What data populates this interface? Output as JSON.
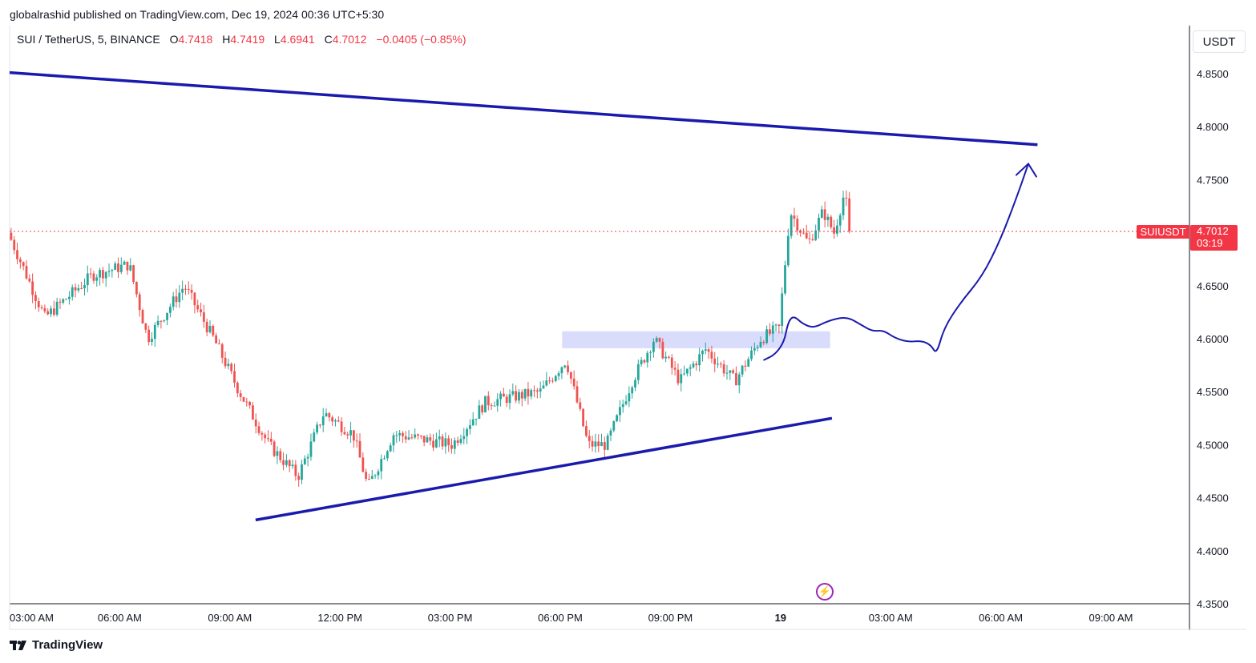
{
  "header": {
    "publisher_line": "globalrashid published on TradingView.com, Dec 19, 2024 00:36 UTC+5:30"
  },
  "legend": {
    "symbol": "SUI / TetherUS, 5, BINANCE",
    "open_label": "O",
    "open": "4.7418",
    "high_label": "H",
    "high": "4.7419",
    "low_label": "L",
    "low": "4.6941",
    "close_label": "C",
    "close": "4.7012",
    "change": "−0.0405 (−0.85%)"
  },
  "currency": "USDT",
  "price_badge": {
    "symbol": "SUIUSDT",
    "price": "4.7012",
    "countdown": "03:19"
  },
  "footer": {
    "brand": "TradingView"
  },
  "colors": {
    "up": "#26a69a",
    "down": "#ef5350",
    "trendline": "#1a1aad",
    "zone": "#d9dcfb",
    "last_price": "#f23645"
  },
  "chart_data": {
    "type": "candlestick",
    "y_ticks": [
      "4.8500",
      "4.8000",
      "4.7500",
      "4.7000",
      "4.6500",
      "4.6000",
      "4.5500",
      "4.5000",
      "4.4500",
      "4.4000",
      "4.3500"
    ],
    "x_ticks": [
      "03:00 AM",
      "06:00 AM",
      "09:00 AM",
      "12:00 PM",
      "03:00 PM",
      "06:00 PM",
      "09:00 PM",
      "19",
      "03:00 AM",
      "06:00 AM",
      "09:00 AM"
    ],
    "ylim": [
      4.35,
      4.85
    ],
    "last_price": 4.7012,
    "keypoints": [
      {
        "t": 0,
        "p": 4.7
      },
      {
        "t": 1.0,
        "p": 4.62
      },
      {
        "t": 2.3,
        "p": 4.66
      },
      {
        "t": 3.3,
        "p": 4.67
      },
      {
        "t": 3.8,
        "p": 4.6
      },
      {
        "t": 4.8,
        "p": 4.65
      },
      {
        "t": 5.6,
        "p": 4.6
      },
      {
        "t": 6.3,
        "p": 4.55
      },
      {
        "t": 7.1,
        "p": 4.5
      },
      {
        "t": 7.9,
        "p": 4.47
      },
      {
        "t": 8.6,
        "p": 4.53
      },
      {
        "t": 9.4,
        "p": 4.51
      },
      {
        "t": 9.8,
        "p": 4.46
      },
      {
        "t": 10.5,
        "p": 4.51
      },
      {
        "t": 12.1,
        "p": 4.5
      },
      {
        "t": 13.0,
        "p": 4.54
      },
      {
        "t": 14.5,
        "p": 4.55
      },
      {
        "t": 15.2,
        "p": 4.58
      },
      {
        "t": 15.8,
        "p": 4.5
      },
      {
        "t": 16.3,
        "p": 4.5
      },
      {
        "t": 17.0,
        "p": 4.56
      },
      {
        "t": 17.6,
        "p": 4.6
      },
      {
        "t": 18.3,
        "p": 4.56
      },
      {
        "t": 19.0,
        "p": 4.59
      },
      {
        "t": 19.8,
        "p": 4.56
      },
      {
        "t": 20.5,
        "p": 4.6
      },
      {
        "t": 21.0,
        "p": 4.61
      },
      {
        "t": 21.3,
        "p": 4.72
      },
      {
        "t": 21.8,
        "p": 4.69
      },
      {
        "t": 22.2,
        "p": 4.72
      },
      {
        "t": 22.5,
        "p": 4.7
      },
      {
        "t": 22.8,
        "p": 4.74
      },
      {
        "t": 22.9,
        "p": 4.7012
      }
    ],
    "annotations": {
      "upper_trendline": [
        {
          "t": 0,
          "p": 4.851
        },
        {
          "t": 28.0,
          "p": 4.783
        }
      ],
      "lower_trendline": [
        {
          "t": 6.7,
          "p": 4.429
        },
        {
          "t": 22.4,
          "p": 4.525
        }
      ],
      "demand_zone": {
        "t0": 15.05,
        "t1": 22.35,
        "p0": 4.591,
        "p1": 4.607
      },
      "projection_path": [
        {
          "t": 20.55,
          "p": 4.58
        },
        {
          "t": 20.85,
          "p": 4.585
        },
        {
          "t": 21.1,
          "p": 4.597
        },
        {
          "t": 21.2,
          "p": 4.615
        },
        {
          "t": 21.35,
          "p": 4.622
        },
        {
          "t": 21.6,
          "p": 4.614
        },
        {
          "t": 21.9,
          "p": 4.61
        },
        {
          "t": 22.3,
          "p": 4.617
        },
        {
          "t": 22.8,
          "p": 4.621
        },
        {
          "t": 23.2,
          "p": 4.613
        },
        {
          "t": 23.5,
          "p": 4.607
        },
        {
          "t": 23.8,
          "p": 4.608
        },
        {
          "t": 24.1,
          "p": 4.601
        },
        {
          "t": 24.45,
          "p": 4.597
        },
        {
          "t": 24.85,
          "p": 4.598
        },
        {
          "t": 25.1,
          "p": 4.594
        },
        {
          "t": 25.25,
          "p": 4.585
        },
        {
          "t": 25.45,
          "p": 4.61
        },
        {
          "t": 25.9,
          "p": 4.634
        },
        {
          "t": 26.5,
          "p": 4.659
        },
        {
          "t": 27.0,
          "p": 4.694
        },
        {
          "t": 27.45,
          "p": 4.735
        },
        {
          "t": 27.75,
          "p": 4.765
        }
      ],
      "arrow_tip": {
        "t": 27.75,
        "p": 4.765
      }
    }
  }
}
